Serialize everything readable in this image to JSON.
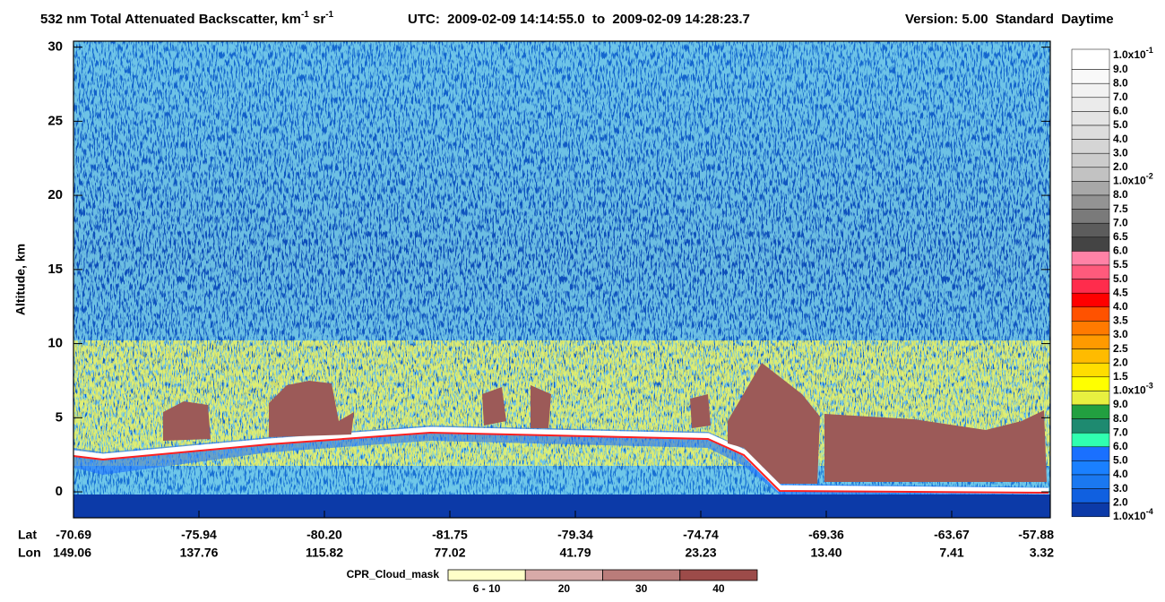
{
  "chart_data": {
    "type": "curtain",
    "title": [
      "532 nm Total Attenuated Backscatter, km",
      "-1",
      " sr",
      "-1"
    ],
    "time_range": "UTC:  2009-02-09 14:14:55.0  to  2009-02-09 14:28:23.7",
    "version": "Version: 5.00  Standard  Daytime",
    "y_label": "Altitude, km",
    "ylim": [
      -1.75,
      30.4
    ],
    "yticks": [
      0,
      5,
      10,
      15,
      20,
      25,
      30
    ],
    "lat_label": "Lat",
    "lon_label": "Lon",
    "lat": [
      "-70.69",
      "-75.94",
      "-80.20",
      "-81.75",
      "-79.34",
      "-74.74",
      "-69.36",
      "-63.67",
      "-57.88"
    ],
    "lon": [
      "149.06",
      "137.76",
      "115.82",
      "77.02",
      "41.79",
      "23.23",
      "13.40",
      "7.41",
      "3.32"
    ],
    "colorbar": {
      "labels": [
        {
          "text": "1.0x10",
          "sup": "-1"
        },
        "9.0",
        "8.0",
        "7.0",
        "6.0",
        "5.0",
        "4.0",
        "3.0",
        "2.0",
        {
          "text": "1.0x10",
          "sup": "-2"
        },
        "8.0",
        "7.5",
        "7.0",
        "6.5",
        "6.0",
        "5.5",
        "5.0",
        "4.5",
        "4.0",
        "3.5",
        "3.0",
        "2.5",
        "2.0",
        "1.5",
        {
          "text": "1.0x10",
          "sup": "-3"
        },
        "9.0",
        "8.0",
        "7.0",
        "6.0",
        "5.0",
        "4.0",
        "3.0",
        "2.0",
        {
          "text": "1.0x10",
          "sup": "-4"
        }
      ],
      "colors": [
        "#ffffff",
        "#f9f9f9",
        "#f2f2f2",
        "#ebebeb",
        "#e4e4e4",
        "#dddddd",
        "#d5d5d5",
        "#cccccc",
        "#c2c2c2",
        "#a8a8a8",
        "#939393",
        "#7a7a7a",
        "#5c5c5c",
        "#444444",
        "#ff82a6",
        "#ff5a7c",
        "#ff2c4c",
        "#ff0000",
        "#ff5200",
        "#ff7a00",
        "#ff9a00",
        "#ffbb00",
        "#ffdd00",
        "#ffff00",
        "#e8f040",
        "#22a040",
        "#1e8a70",
        "#30ffb0",
        "#1a70ff",
        "#1a80ff",
        "#1a78f0",
        "#1060e0",
        "#0c3aa8"
      ]
    },
    "cpr": {
      "label": "CPR_Cloud_mask",
      "items": [
        "6 - 10",
        "20",
        "30",
        "40"
      ],
      "colors": [
        "#ffffc8",
        "#d8aaa8",
        "#ba7c7a",
        "#9c4b49"
      ]
    }
  }
}
